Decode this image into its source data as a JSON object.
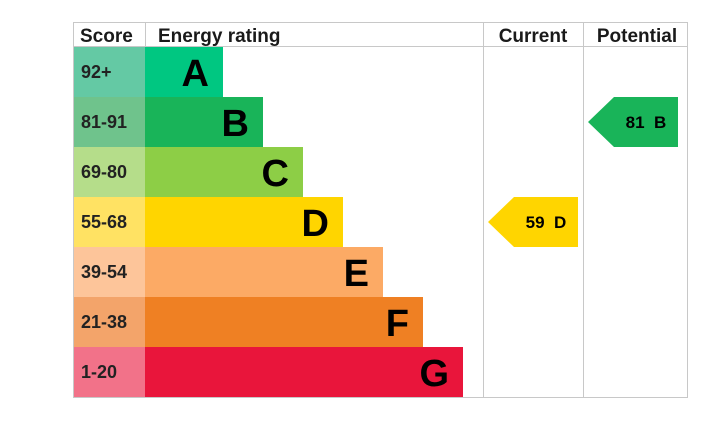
{
  "chart_data": {
    "type": "table",
    "headers": {
      "score": "Score",
      "energy_rating": "Energy rating",
      "current": "Current",
      "potential": "Potential"
    },
    "bands": [
      {
        "score": "92+",
        "letter": "A",
        "color": "#00c781",
        "score_color": "#64c9a4"
      },
      {
        "score": "81-91",
        "letter": "B",
        "color": "#19b459",
        "score_color": "#6fc38c"
      },
      {
        "score": "69-80",
        "letter": "C",
        "color": "#8dce46",
        "score_color": "#b5dd8a"
      },
      {
        "score": "55-68",
        "letter": "D",
        "color": "#ffd500",
        "score_color": "#ffe263"
      },
      {
        "score": "39-54",
        "letter": "E",
        "color": "#fcaa65",
        "score_color": "#fdc59a"
      },
      {
        "score": "21-38",
        "letter": "F",
        "color": "#ef8023",
        "score_color": "#f3a46a"
      },
      {
        "score": "1-20",
        "letter": "G",
        "color": "#e9153b",
        "score_color": "#f27289"
      }
    ],
    "current": {
      "value": 59,
      "letter": "D",
      "label": "59  D",
      "color": "#ffd500"
    },
    "potential": {
      "value": 81,
      "letter": "B",
      "label": "81  B",
      "color": "#19b459"
    }
  }
}
